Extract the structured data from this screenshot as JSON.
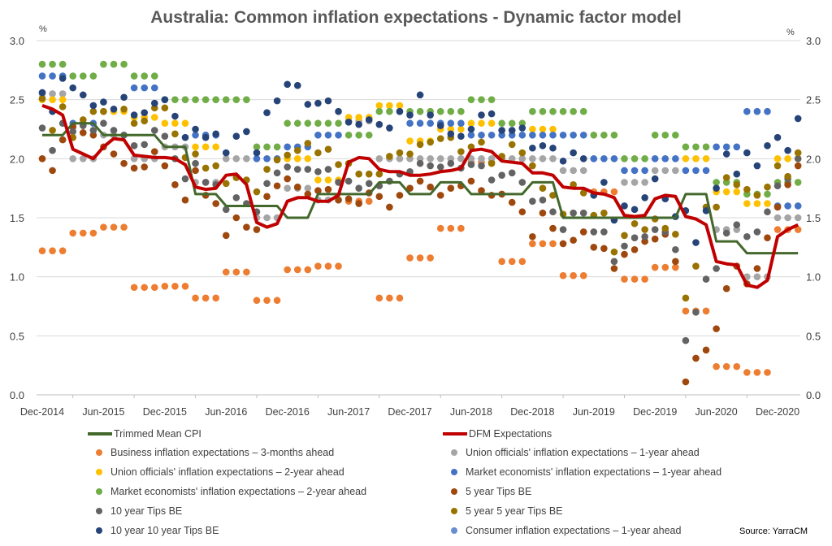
{
  "chart_data": {
    "type": "scatter+line",
    "title": "Australia: Common inflation expectations - Dynamic factor model",
    "y_unit_left": "%",
    "y_unit_right": "%",
    "ylim": [
      0,
      3.0
    ],
    "y_ticks": [
      "0.0",
      "0.5",
      "1.0",
      "1.5",
      "2.0",
      "2.5",
      "3.0"
    ],
    "x_tick_labels": [
      "Dec-2014",
      "Jun-2015",
      "Dec-2015",
      "Jun-2016",
      "Dec-2016",
      "Jun-2017",
      "Dec-2017",
      "Jun-2018",
      "Dec-2018",
      "Jun-2019",
      "Dec-2019",
      "Jun-2020",
      "Dec-2020"
    ],
    "grid": true,
    "legend_position": "bottom",
    "x": [
      "Dec-2014",
      "Jan-2015",
      "Feb-2015",
      "Mar-2015",
      "Apr-2015",
      "May-2015",
      "Jun-2015",
      "Jul-2015",
      "Aug-2015",
      "Sep-2015",
      "Oct-2015",
      "Nov-2015",
      "Dec-2015",
      "Jan-2016",
      "Feb-2016",
      "Mar-2016",
      "Apr-2016",
      "May-2016",
      "Jun-2016",
      "Jul-2016",
      "Aug-2016",
      "Sep-2016",
      "Oct-2016",
      "Nov-2016",
      "Dec-2016",
      "Jan-2017",
      "Feb-2017",
      "Mar-2017",
      "Apr-2017",
      "May-2017",
      "Jun-2017",
      "Jul-2017",
      "Aug-2017",
      "Sep-2017",
      "Oct-2017",
      "Nov-2017",
      "Dec-2017",
      "Jan-2018",
      "Feb-2018",
      "Mar-2018",
      "Apr-2018",
      "May-2018",
      "Jun-2018",
      "Jul-2018",
      "Aug-2018",
      "Sep-2018",
      "Oct-2018",
      "Nov-2018",
      "Dec-2018",
      "Jan-2019",
      "Feb-2019",
      "Mar-2019",
      "Apr-2019",
      "May-2019",
      "Jun-2019",
      "Jul-2019",
      "Aug-2019",
      "Sep-2019",
      "Oct-2019",
      "Nov-2019",
      "Dec-2019",
      "Jan-2020",
      "Feb-2020",
      "Mar-2020",
      "Apr-2020",
      "May-2020",
      "Jun-2020",
      "Jul-2020",
      "Aug-2020",
      "Sep-2020",
      "Oct-2020",
      "Nov-2020",
      "Dec-2020",
      "Jan-2021",
      "Feb-2021"
    ],
    "series": [
      {
        "name": "Business inflation expectations – 3-months ahead",
        "kind": "scatter",
        "color": "#ed7d31",
        "values": [
          1.22,
          1.22,
          1.22,
          1.37,
          1.37,
          1.37,
          1.42,
          1.42,
          1.42,
          0.91,
          0.91,
          0.91,
          0.92,
          0.92,
          0.92,
          0.82,
          0.82,
          0.82,
          1.04,
          1.04,
          1.04,
          0.8,
          0.8,
          0.8,
          1.06,
          1.06,
          1.06,
          1.09,
          1.09,
          1.09,
          1.64,
          1.64,
          1.64,
          0.82,
          0.82,
          0.82,
          1.16,
          1.16,
          1.16,
          1.41,
          1.41,
          1.41,
          1.97,
          1.97,
          1.97,
          1.13,
          1.13,
          1.13,
          1.28,
          1.28,
          1.28,
          1.01,
          1.01,
          1.01,
          1.72,
          1.72,
          1.72,
          0.98,
          0.98,
          0.98,
          1.08,
          1.08,
          1.08,
          0.71,
          0.71,
          0.71,
          0.24,
          0.24,
          0.24,
          0.19,
          0.19,
          0.19,
          1.4,
          1.4,
          1.4
        ]
      },
      {
        "name": "Union officials' inflation expectations – 1-year ahead",
        "kind": "scatter",
        "color": "#a5a5a5",
        "values": [
          2.55,
          2.55,
          2.55,
          2.0,
          2.0,
          2.0,
          2.2,
          2.2,
          2.2,
          2.0,
          2.0,
          2.0,
          2.1,
          2.1,
          2.1,
          1.8,
          1.8,
          1.8,
          2.0,
          2.0,
          2.0,
          1.5,
          1.5,
          1.5,
          1.75,
          1.75,
          1.75,
          1.65,
          1.65,
          1.65,
          2.32,
          2.32,
          2.32,
          2.0,
          2.0,
          2.0,
          2.0,
          2.0,
          2.0,
          2.0,
          2.0,
          2.0,
          2.0,
          2.0,
          2.0,
          2.0,
          2.0,
          2.0,
          2.0,
          2.0,
          2.0,
          1.9,
          1.9,
          1.9,
          null,
          null,
          null,
          1.8,
          1.8,
          1.8,
          1.9,
          1.9,
          1.9,
          null,
          null,
          null,
          1.4,
          1.4,
          1.4,
          1.0,
          1.0,
          1.0,
          1.5,
          1.5,
          1.5
        ]
      },
      {
        "name": "Union officials' inflation expectations – 2-year ahead",
        "kind": "scatter",
        "color": "#ffc000",
        "values": [
          2.5,
          2.5,
          2.5,
          null,
          null,
          null,
          2.4,
          2.4,
          2.4,
          2.35,
          2.35,
          2.35,
          2.3,
          2.3,
          2.3,
          2.1,
          2.1,
          2.1,
          null,
          null,
          null,
          null,
          null,
          null,
          2.0,
          2.0,
          2.0,
          1.82,
          1.82,
          1.82,
          2.35,
          2.35,
          2.35,
          2.45,
          2.45,
          2.45,
          2.15,
          2.15,
          2.15,
          2.25,
          2.25,
          2.25,
          2.3,
          2.3,
          2.3,
          null,
          null,
          null,
          2.25,
          2.25,
          2.25,
          null,
          null,
          null,
          null,
          null,
          null,
          null,
          null,
          null,
          null,
          null,
          null,
          2.0,
          2.0,
          2.0,
          1.72,
          1.72,
          1.72,
          1.62,
          1.62,
          1.62,
          2.0,
          2.0,
          2.0
        ]
      },
      {
        "name": "Market economists' inflation expectations – 1-year ahead",
        "kind": "scatter",
        "color": "#4472c4",
        "values": [
          2.7,
          2.7,
          2.7,
          2.3,
          2.3,
          2.3,
          null,
          null,
          null,
          2.6,
          2.6,
          2.6,
          null,
          null,
          null,
          2.2,
          2.2,
          2.2,
          null,
          null,
          null,
          2.0,
          2.0,
          2.0,
          2.1,
          2.1,
          2.1,
          2.2,
          2.2,
          2.2,
          null,
          null,
          null,
          null,
          null,
          null,
          2.3,
          2.3,
          2.3,
          2.3,
          2.3,
          2.3,
          2.2,
          2.2,
          2.2,
          2.2,
          2.2,
          2.2,
          2.2,
          2.2,
          2.2,
          2.2,
          2.2,
          2.2,
          2.0,
          2.0,
          2.0,
          1.9,
          1.9,
          1.9,
          2.0,
          2.0,
          2.0,
          1.9,
          1.9,
          1.9,
          2.1,
          2.1,
          2.1,
          2.4,
          2.4,
          2.4,
          1.6,
          1.6,
          1.6
        ]
      },
      {
        "name": "Market economists' inflation expectations – 2-year ahead",
        "kind": "scatter",
        "color": "#70ad47",
        "values": [
          2.8,
          2.8,
          2.8,
          2.7,
          2.7,
          2.7,
          2.8,
          2.8,
          2.8,
          2.7,
          2.7,
          2.7,
          2.5,
          2.5,
          2.5,
          2.5,
          2.5,
          2.5,
          2.5,
          2.5,
          2.5,
          2.1,
          2.1,
          2.1,
          2.3,
          2.3,
          2.3,
          2.3,
          2.3,
          2.3,
          2.2,
          2.2,
          2.2,
          2.4,
          2.4,
          2.4,
          2.4,
          2.4,
          2.4,
          2.4,
          2.4,
          2.4,
          2.5,
          2.5,
          2.5,
          2.3,
          2.3,
          2.3,
          2.4,
          2.4,
          2.4,
          2.4,
          2.4,
          2.4,
          2.2,
          2.2,
          2.2,
          2.0,
          2.0,
          2.0,
          2.2,
          2.2,
          2.2,
          2.1,
          2.1,
          2.1,
          1.8,
          1.8,
          1.8,
          1.7,
          1.7,
          1.7,
          1.8,
          1.8,
          1.8
        ]
      },
      {
        "name": "5 year Tips BE",
        "kind": "scatter",
        "color": "#9e480e",
        "values": [
          2.0,
          1.9,
          2.16,
          2.27,
          2.22,
          2.2,
          2.1,
          2.04,
          1.96,
          1.92,
          1.93,
          2.06,
          1.94,
          1.78,
          1.65,
          1.9,
          1.69,
          1.62,
          1.35,
          1.5,
          1.42,
          1.4,
          1.68,
          1.77,
          1.83,
          1.76,
          1.7,
          1.73,
          1.74,
          1.65,
          1.66,
          1.62,
          1.71,
          1.68,
          1.59,
          1.69,
          1.75,
          1.81,
          1.76,
          1.69,
          1.75,
          1.77,
          1.81,
          1.73,
          1.69,
          1.7,
          1.63,
          1.55,
          1.34,
          1.54,
          1.41,
          1.28,
          1.31,
          1.38,
          1.25,
          1.24,
          1.07,
          1.19,
          1.23,
          1.3,
          1.32,
          1.36,
          1.13,
          0.11,
          0.31,
          0.38,
          0.56,
          0.9,
          1.09,
          0.94,
          1.07,
          1.33,
          1.59,
          1.78,
          1.94
        ]
      },
      {
        "name": "10 year Tips BE",
        "kind": "scatter",
        "color": "#636363",
        "values": [
          2.26,
          2.07,
          2.3,
          2.23,
          2.28,
          2.24,
          2.3,
          2.24,
          2.2,
          2.11,
          2.12,
          2.24,
          2.19,
          2.0,
          1.83,
          1.96,
          1.8,
          1.78,
          1.57,
          1.67,
          1.62,
          1.55,
          1.79,
          1.88,
          1.93,
          1.91,
          1.91,
          1.89,
          1.91,
          1.8,
          1.81,
          1.75,
          1.79,
          1.77,
          1.81,
          1.87,
          1.89,
          1.96,
          1.94,
          1.93,
          1.96,
          1.92,
          1.95,
          1.94,
          1.82,
          1.86,
          1.88,
          1.8,
          1.64,
          1.65,
          1.55,
          1.4,
          1.54,
          1.54,
          1.38,
          1.38,
          1.13,
          1.26,
          1.33,
          1.34,
          1.4,
          1.38,
          1.23,
          0.46,
          0.7,
          0.98,
          1.07,
          1.37,
          1.44,
          1.34,
          1.38,
          1.55,
          1.77,
          1.83,
          2.0
        ]
      },
      {
        "name": "5 year 5 year Tips BE",
        "kind": "scatter",
        "color": "#997300",
        "values": [
          2.51,
          2.24,
          2.44,
          2.18,
          2.33,
          2.4,
          2.4,
          null,
          2.42,
          2.3,
          2.32,
          2.43,
          2.43,
          2.21,
          2.01,
          2.04,
          1.92,
          1.94,
          1.79,
          1.84,
          1.82,
          1.72,
          1.91,
          1.99,
          2.03,
          2.07,
          2.13,
          2.05,
          2.08,
          1.95,
          1.96,
          1.87,
          1.87,
          1.87,
          2.02,
          2.05,
          2.04,
          2.12,
          2.14,
          2.17,
          2.18,
          2.06,
          2.1,
          2.14,
          1.96,
          2.02,
          2.12,
          2.05,
          1.94,
          1.75,
          1.69,
          1.53,
          1.78,
          1.71,
          1.52,
          1.54,
          1.21,
          1.35,
          1.45,
          1.4,
          1.49,
          1.41,
          1.36,
          0.82,
          1.09,
          1.59,
          1.59,
          1.84,
          1.78,
          1.74,
          1.69,
          1.76,
          1.94,
          1.85,
          2.05
        ]
      },
      {
        "name": "10 year 10 year Tips BE",
        "kind": "scatter",
        "color": "#264478",
        "values": [
          2.56,
          2.4,
          2.68,
          2.6,
          2.54,
          2.45,
          2.48,
          2.42,
          2.52,
          2.37,
          2.39,
          2.47,
          2.5,
          2.36,
          2.18,
          2.25,
          2.18,
          2.21,
          2.05,
          2.19,
          2.23,
          2.05,
          2.39,
          2.49,
          2.63,
          2.62,
          2.46,
          2.47,
          2.49,
          2.4,
          2.31,
          2.29,
          2.33,
          2.29,
          2.26,
          2.4,
          2.37,
          2.54,
          2.37,
          2.28,
          2.21,
          2.19,
          2.25,
          2.37,
          2.38,
          2.24,
          2.24,
          2.26,
          2.09,
          2.11,
          2.09,
          1.98,
          2.05,
          2.0,
          1.69,
          1.8,
          1.48,
          1.6,
          1.57,
          1.67,
          1.83,
          1.66,
          1.51,
          1.56,
          1.29,
          1.56,
          1.75,
          2.04,
          1.87,
          2.05,
          1.94,
          2.11,
          2.18,
          2.07,
          2.34
        ]
      },
      {
        "name": "Consumer inflation expectations – 1-year ahead",
        "kind": "scatter",
        "color": "#698ed0",
        "values": []
      },
      {
        "name": "Trimmed Mean CPI",
        "kind": "line",
        "color": "#43682b",
        "values": [
          2.2,
          2.2,
          2.2,
          2.3,
          2.3,
          2.3,
          2.2,
          2.2,
          2.2,
          2.2,
          2.2,
          2.2,
          2.1,
          2.1,
          2.1,
          1.7,
          1.7,
          1.7,
          1.6,
          1.6,
          1.6,
          1.6,
          1.6,
          1.6,
          1.5,
          1.5,
          1.5,
          1.7,
          1.7,
          1.7,
          1.7,
          1.7,
          1.7,
          1.8,
          1.8,
          1.8,
          1.7,
          1.7,
          1.7,
          1.8,
          1.8,
          1.8,
          1.7,
          1.7,
          1.7,
          1.7,
          1.7,
          1.7,
          1.8,
          1.8,
          1.8,
          1.5,
          1.5,
          1.5,
          1.5,
          1.5,
          1.5,
          1.5,
          1.5,
          1.5,
          1.5,
          1.5,
          1.5,
          1.7,
          1.7,
          1.7,
          1.3,
          1.3,
          1.3,
          1.2,
          1.2,
          1.2,
          1.2,
          1.2,
          1.2
        ]
      },
      {
        "name": "DFM Expectations",
        "kind": "line",
        "color": "#c00000",
        "values": [
          2.45,
          2.42,
          2.37,
          2.08,
          2.04,
          2.0,
          2.1,
          2.17,
          2.16,
          2.03,
          2.02,
          2.01,
          2.01,
          2.0,
          1.95,
          1.76,
          1.74,
          1.75,
          1.86,
          1.87,
          1.78,
          1.46,
          1.42,
          1.45,
          1.64,
          1.67,
          1.67,
          1.64,
          1.64,
          1.69,
          1.97,
          2.01,
          2.0,
          1.91,
          1.89,
          1.89,
          1.86,
          1.86,
          1.87,
          1.89,
          1.9,
          1.92,
          2.07,
          2.08,
          2.06,
          1.98,
          1.97,
          1.96,
          1.88,
          1.88,
          1.86,
          1.76,
          1.75,
          1.75,
          1.71,
          1.7,
          1.67,
          1.52,
          1.51,
          1.52,
          1.66,
          1.69,
          1.68,
          1.51,
          1.49,
          1.44,
          1.13,
          1.11,
          1.1,
          0.93,
          0.91,
          0.97,
          1.34,
          1.4,
          1.44
        ]
      }
    ]
  },
  "legend": {
    "left": [
      "Trimmed Mean CPI",
      "Business inflation expectations – 3-months ahead",
      "Union officials' inflation expectations – 2-year ahead",
      "Market economists' inflation expectations – 2-year ahead",
      "10 year Tips BE",
      "10 year 10 year Tips BE"
    ],
    "right": [
      "DFM Expectations",
      "Union officials' inflation expectations – 1-year ahead",
      "Market economists' inflation expectations – 1-year ahead",
      "5 year Tips BE",
      "5 year 5 year Tips BE",
      "Consumer inflation expectations – 1-year ahead"
    ]
  },
  "source": "Source: YarraCM"
}
